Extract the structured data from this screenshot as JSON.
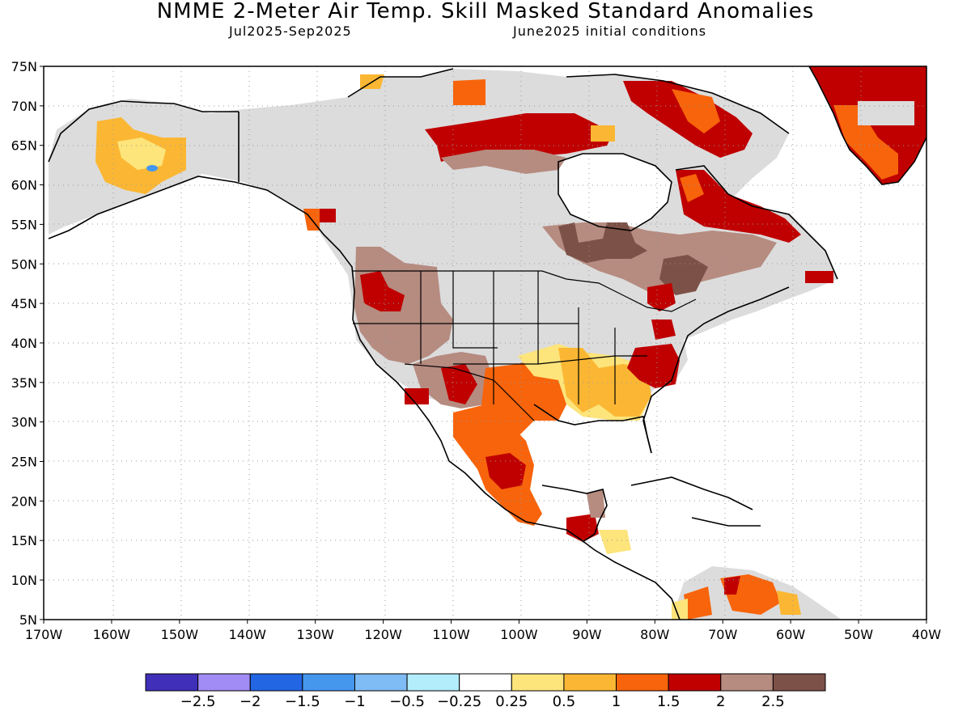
{
  "header": {
    "title": "NMME 2-Meter Air Temp. Skill Masked Standard Anomalies",
    "period": "Jul2025-Sep2025",
    "init": "June2025 initial conditions"
  },
  "axes": {
    "lat_labels": [
      "75N",
      "70N",
      "65N",
      "60N",
      "55N",
      "50N",
      "45N",
      "40N",
      "35N",
      "30N",
      "25N",
      "20N",
      "15N",
      "10N",
      "5N"
    ],
    "lon_labels": [
      "170W",
      "160W",
      "150W",
      "140W",
      "130W",
      "120W",
      "110W",
      "100W",
      "90W",
      "80W",
      "70W",
      "60W",
      "50W",
      "40W"
    ]
  },
  "legend": {
    "colors": [
      "#3f2fb9",
      "#a18cf5",
      "#2366e3",
      "#4597ee",
      "#7fbbf5",
      "#b3ecfb",
      "#ffffff",
      "#fde47b",
      "#fbb733",
      "#f7640b",
      "#c00000",
      "#b68b80",
      "#7c5147"
    ],
    "labels": [
      "−2.5",
      "−2",
      "−1.5",
      "−1",
      "−0.5",
      "−0.25",
      "0.25",
      "0.5",
      "1",
      "1.5",
      "2",
      "2.5"
    ]
  },
  "palette": {
    "land_gray": "#dcdcdc",
    "nodata": "#ffffff"
  }
}
